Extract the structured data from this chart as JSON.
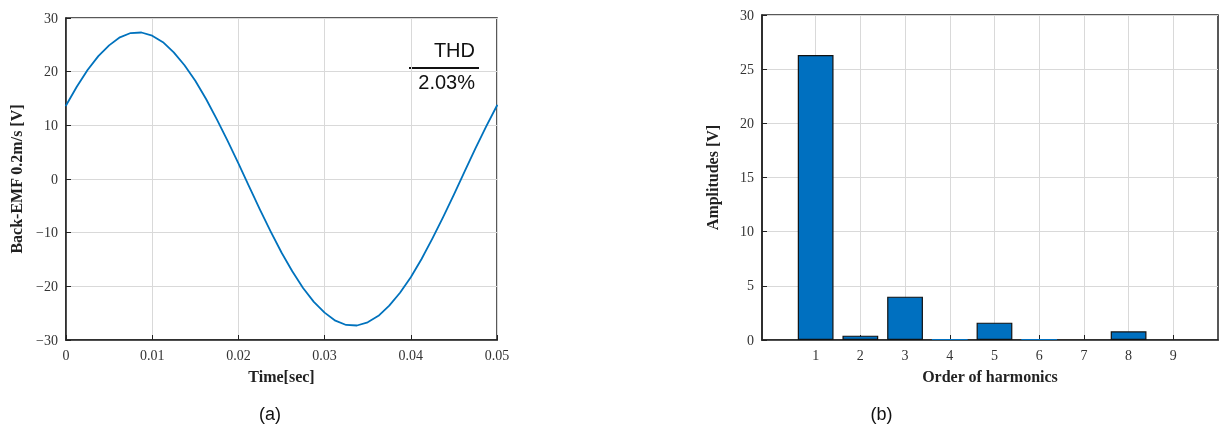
{
  "chart_data": [
    {
      "type": "line",
      "title": "(a)",
      "xlabel": "Time[sec]",
      "ylabel": "Back-EMF 0.2m/s [V]",
      "annotations": [
        "THD",
        "2.03%"
      ],
      "x": [
        0,
        0.00125,
        0.0025,
        0.00375,
        0.005,
        0.00625,
        0.0075,
        0.00875,
        0.01,
        0.01125,
        0.0125,
        0.01375,
        0.015,
        0.01625,
        0.0175,
        0.01875,
        0.02,
        0.02125,
        0.0225,
        0.02375,
        0.025,
        0.02625,
        0.0275,
        0.02875,
        0.03,
        0.03125,
        0.0325,
        0.03375,
        0.035,
        0.03625,
        0.0375,
        0.03875,
        0.04,
        0.04125,
        0.0425,
        0.04375,
        0.045,
        0.04625,
        0.0475,
        0.04875,
        0.05
      ],
      "series": [
        {
          "color": "#0072bd",
          "values": [
            13.7,
            17.2,
            20.3,
            22.9,
            24.9,
            26.4,
            27.2,
            27.3,
            26.7,
            25.5,
            23.6,
            21.2,
            18.3,
            14.9,
            11.1,
            7.1,
            2.9,
            -1.4,
            -5.7,
            -9.8,
            -13.7,
            -17.2,
            -20.3,
            -22.9,
            -24.9,
            -26.4,
            -27.2,
            -27.3,
            -26.7,
            -25.5,
            -23.6,
            -21.2,
            -18.3,
            -14.9,
            -11.1,
            -7.1,
            -2.9,
            1.4,
            5.7,
            9.8,
            13.7
          ]
        }
      ],
      "xlim": [
        0,
        0.05
      ],
      "xticks": [
        0,
        0.01,
        0.02,
        0.03,
        0.04,
        0.05
      ],
      "ylim": [
        -30,
        30
      ],
      "yticks": [
        {
          "value": -30,
          "label": "−30"
        },
        {
          "value": -20,
          "label": "−20"
        },
        {
          "value": -10,
          "label": "−10"
        },
        0,
        10,
        20,
        30
      ],
      "grid": true,
      "line_style": "solid",
      "marker": "none"
    },
    {
      "type": "bar",
      "title": "(b)",
      "xlabel": "Order of harmonics",
      "ylabel": "Amplitudes [V]",
      "x": [
        1,
        2,
        3,
        4,
        5,
        6,
        7,
        8,
        9
      ],
      "series": [
        {
          "color": "#0070c0",
          "values": [
            26.3,
            0.4,
            4.0,
            0.1,
            1.6,
            0.1,
            0,
            0.8,
            0
          ]
        }
      ],
      "xlim": [
        -0.2,
        10
      ],
      "xticks": [
        1,
        2,
        3,
        4,
        5,
        6,
        7,
        8,
        9
      ],
      "ylim": [
        0,
        30
      ],
      "yticks": [
        0,
        5,
        10,
        15,
        20,
        25,
        30
      ],
      "grid": true
    }
  ]
}
